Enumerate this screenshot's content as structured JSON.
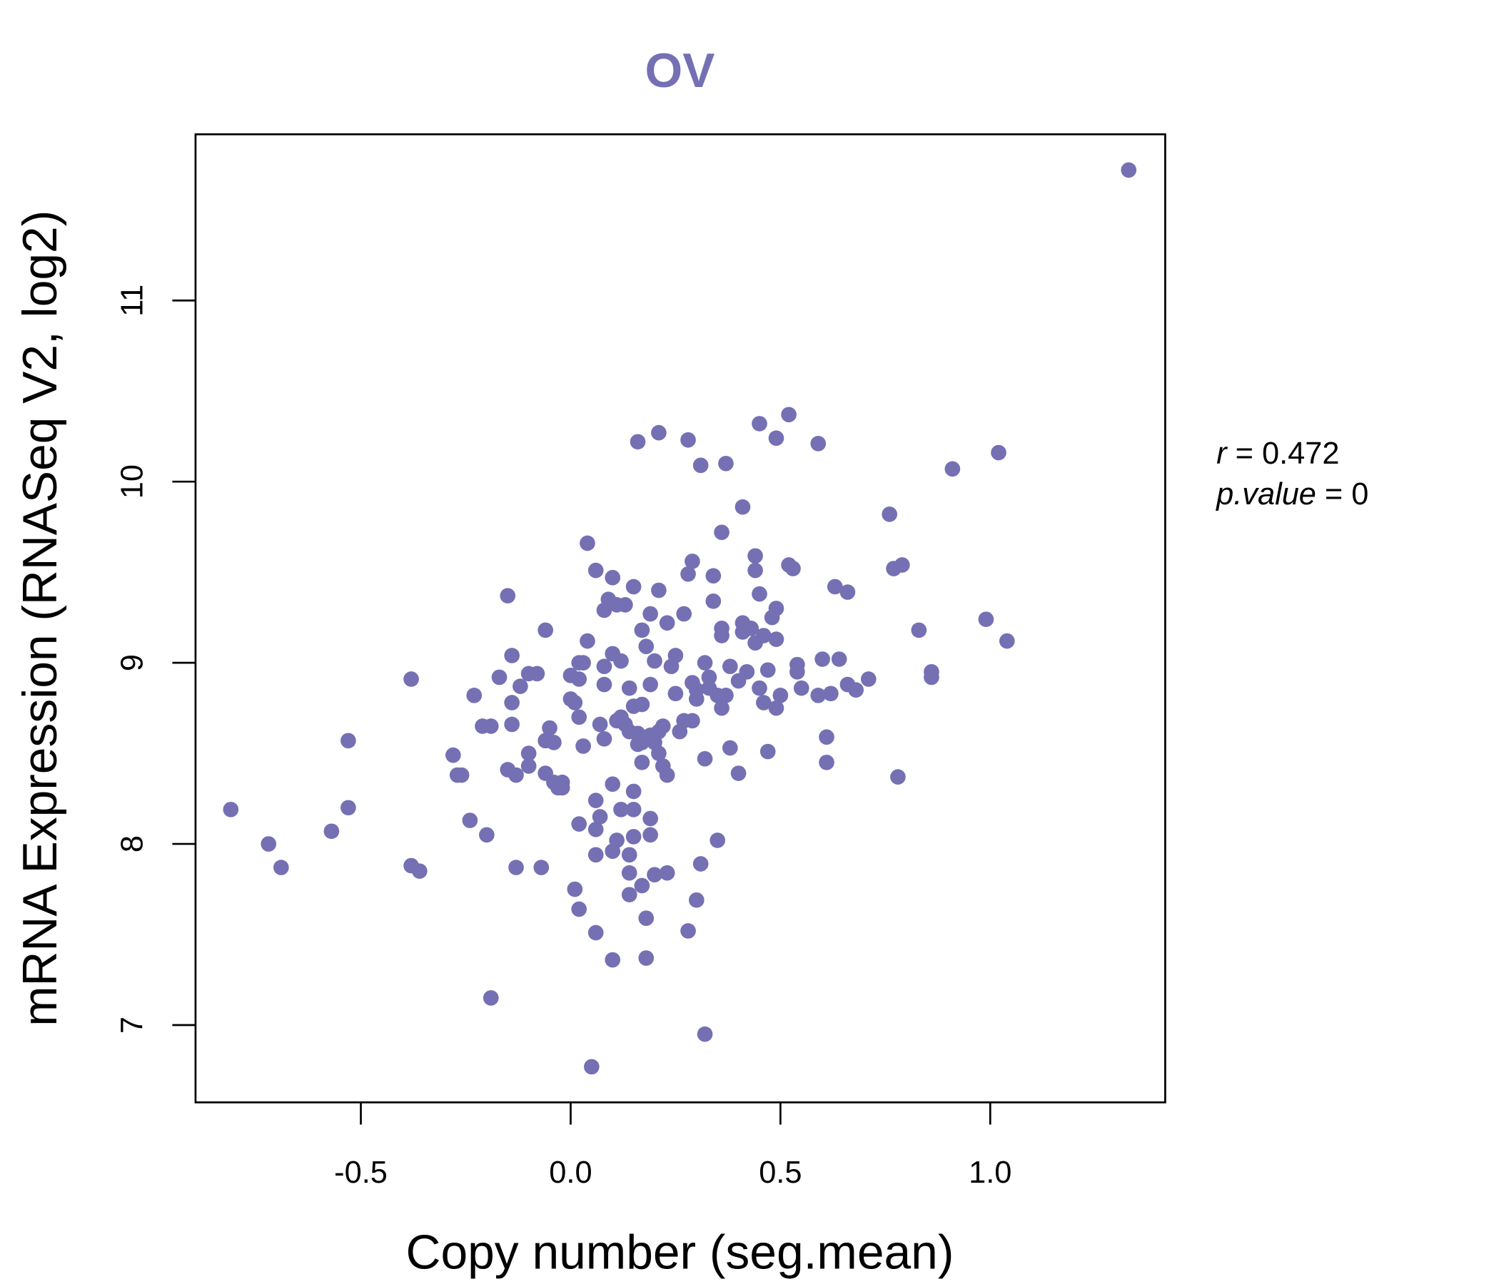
{
  "chart_data": {
    "type": "scatter",
    "title": "OV",
    "xlabel": "Copy number (seg.mean)",
    "ylabel": "mRNA Expression (RNASeq V2, log2)",
    "xlim": [
      -0.89,
      1.42
    ],
    "ylim": [
      6.58,
      11.93
    ],
    "xticks": [
      {
        "value": -0.5,
        "label": "-0.5"
      },
      {
        "value": 0.0,
        "label": "0.0"
      },
      {
        "value": 0.5,
        "label": "0.5"
      },
      {
        "value": 1.0,
        "label": "1.0"
      }
    ],
    "yticks": [
      {
        "value": 7,
        "label": "7"
      },
      {
        "value": 8,
        "label": "8"
      },
      {
        "value": 9,
        "label": "9"
      },
      {
        "value": 10,
        "label": "10"
      },
      {
        "value": 11,
        "label": "11"
      }
    ],
    "grid": false,
    "color": "#7570b3",
    "annotation": {
      "r_label": "r",
      "r_value": "0.472",
      "p_label": "p.value",
      "p_value": "0"
    },
    "points": [
      [
        1.33,
        11.72
      ],
      [
        -0.81,
        8.19
      ],
      [
        -0.72,
        8.0
      ],
      [
        -0.69,
        7.87
      ],
      [
        -0.57,
        8.07
      ],
      [
        -0.53,
        8.2
      ],
      [
        -0.53,
        8.57
      ],
      [
        -0.38,
        8.91
      ],
      [
        -0.38,
        7.88
      ],
      [
        -0.36,
        7.85
      ],
      [
        -0.28,
        8.49
      ],
      [
        -0.27,
        8.38
      ],
      [
        -0.26,
        8.38
      ],
      [
        -0.24,
        8.13
      ],
      [
        -0.23,
        8.82
      ],
      [
        -0.2,
        8.05
      ],
      [
        -0.21,
        8.65
      ],
      [
        -0.19,
        8.65
      ],
      [
        -0.19,
        7.15
      ],
      [
        -0.17,
        8.92
      ],
      [
        -0.15,
        9.37
      ],
      [
        -0.15,
        8.41
      ],
      [
        -0.14,
        9.04
      ],
      [
        -0.14,
        8.78
      ],
      [
        -0.14,
        8.66
      ],
      [
        -0.13,
        7.87
      ],
      [
        -0.13,
        8.38
      ],
      [
        -0.12,
        8.87
      ],
      [
        -0.1,
        8.5
      ],
      [
        -0.1,
        8.43
      ],
      [
        -0.1,
        8.94
      ],
      [
        -0.08,
        8.94
      ],
      [
        -0.07,
        7.87
      ],
      [
        -0.06,
        9.18
      ],
      [
        -0.06,
        8.57
      ],
      [
        -0.05,
        8.64
      ],
      [
        -0.04,
        8.56
      ],
      [
        -0.06,
        8.39
      ],
      [
        -0.04,
        8.34
      ],
      [
        -0.03,
        8.31
      ],
      [
        -0.02,
        8.34
      ],
      [
        -0.02,
        8.31
      ],
      [
        0.0,
        8.8
      ],
      [
        0.0,
        8.93
      ],
      [
        0.01,
        8.78
      ],
      [
        0.02,
        9.0
      ],
      [
        0.02,
        8.91
      ],
      [
        0.02,
        8.7
      ],
      [
        0.01,
        7.75
      ],
      [
        0.02,
        7.64
      ],
      [
        0.03,
        8.54
      ],
      [
        0.02,
        8.11
      ],
      [
        0.03,
        9.0
      ],
      [
        0.04,
        9.66
      ],
      [
        0.04,
        9.12
      ],
      [
        0.05,
        6.77
      ],
      [
        0.06,
        7.94
      ],
      [
        0.06,
        8.08
      ],
      [
        0.06,
        9.51
      ],
      [
        0.06,
        8.24
      ],
      [
        0.06,
        7.51
      ],
      [
        0.07,
        8.15
      ],
      [
        0.08,
        9.29
      ],
      [
        0.08,
        8.88
      ],
      [
        0.08,
        8.58
      ],
      [
        0.07,
        8.66
      ],
      [
        0.08,
        8.98
      ],
      [
        0.09,
        9.35
      ],
      [
        0.1,
        9.47
      ],
      [
        0.1,
        8.33
      ],
      [
        0.1,
        7.36
      ],
      [
        0.1,
        7.96
      ],
      [
        0.11,
        8.02
      ],
      [
        0.1,
        9.05
      ],
      [
        0.11,
        8.68
      ],
      [
        0.11,
        9.32
      ],
      [
        0.12,
        8.19
      ],
      [
        0.12,
        9.01
      ],
      [
        0.13,
        9.32
      ],
      [
        0.13,
        8.66
      ],
      [
        0.14,
        7.94
      ],
      [
        0.14,
        7.84
      ],
      [
        0.14,
        7.72
      ],
      [
        0.15,
        9.42
      ],
      [
        0.14,
        8.86
      ],
      [
        0.15,
        8.19
      ],
      [
        0.15,
        8.04
      ],
      [
        0.15,
        8.29
      ],
      [
        0.16,
        10.22
      ],
      [
        0.16,
        8.61
      ],
      [
        0.17,
        8.77
      ],
      [
        0.17,
        8.45
      ],
      [
        0.17,
        7.77
      ],
      [
        0.17,
        9.18
      ],
      [
        0.18,
        7.37
      ],
      [
        0.18,
        9.09
      ],
      [
        0.18,
        7.59
      ],
      [
        0.19,
        9.27
      ],
      [
        0.19,
        8.05
      ],
      [
        0.19,
        8.88
      ],
      [
        0.19,
        8.14
      ],
      [
        0.2,
        9.01
      ],
      [
        0.2,
        7.83
      ],
      [
        0.21,
        8.5
      ],
      [
        0.21,
        10.27
      ],
      [
        0.21,
        9.4
      ],
      [
        0.21,
        8.62
      ],
      [
        0.22,
        8.43
      ],
      [
        0.22,
        8.65
      ],
      [
        0.23,
        9.22
      ],
      [
        0.23,
        8.38
      ],
      [
        0.23,
        7.84
      ],
      [
        0.24,
        8.98
      ],
      [
        0.25,
        9.04
      ],
      [
        0.25,
        8.83
      ],
      [
        0.26,
        8.62
      ],
      [
        0.27,
        9.27
      ],
      [
        0.27,
        8.68
      ],
      [
        0.28,
        10.23
      ],
      [
        0.28,
        7.52
      ],
      [
        0.28,
        9.49
      ],
      [
        0.29,
        8.68
      ],
      [
        0.29,
        9.56
      ],
      [
        0.29,
        8.89
      ],
      [
        0.3,
        8.8
      ],
      [
        0.3,
        7.69
      ],
      [
        0.31,
        7.89
      ],
      [
        0.31,
        10.09
      ],
      [
        0.32,
        6.95
      ],
      [
        0.32,
        8.47
      ],
      [
        0.32,
        9.0
      ],
      [
        0.33,
        8.86
      ],
      [
        0.34,
        9.34
      ],
      [
        0.34,
        9.48
      ],
      [
        0.35,
        8.82
      ],
      [
        0.35,
        8.02
      ],
      [
        0.36,
        9.19
      ],
      [
        0.36,
        8.75
      ],
      [
        0.36,
        9.15
      ],
      [
        0.36,
        9.72
      ],
      [
        0.37,
        10.1
      ],
      [
        0.37,
        8.82
      ],
      [
        0.38,
        8.53
      ],
      [
        0.38,
        8.98
      ],
      [
        0.4,
        8.9
      ],
      [
        0.4,
        8.39
      ],
      [
        0.41,
        9.86
      ],
      [
        0.41,
        9.17
      ],
      [
        0.41,
        9.22
      ],
      [
        0.42,
        8.95
      ],
      [
        0.43,
        9.19
      ],
      [
        0.44,
        9.59
      ],
      [
        0.44,
        9.11
      ],
      [
        0.44,
        9.51
      ],
      [
        0.45,
        10.32
      ],
      [
        0.45,
        9.38
      ],
      [
        0.45,
        8.86
      ],
      [
        0.46,
        9.15
      ],
      [
        0.46,
        8.78
      ],
      [
        0.47,
        8.96
      ],
      [
        0.47,
        8.51
      ],
      [
        0.48,
        9.25
      ],
      [
        0.49,
        10.24
      ],
      [
        0.49,
        8.75
      ],
      [
        0.49,
        9.3
      ],
      [
        0.49,
        9.13
      ],
      [
        0.5,
        8.82
      ],
      [
        0.52,
        10.37
      ],
      [
        0.52,
        9.54
      ],
      [
        0.53,
        9.52
      ],
      [
        0.54,
        8.95
      ],
      [
        0.54,
        8.99
      ],
      [
        0.55,
        8.86
      ],
      [
        0.59,
        10.21
      ],
      [
        0.59,
        8.82
      ],
      [
        0.6,
        9.02
      ],
      [
        0.61,
        8.45
      ],
      [
        0.61,
        8.59
      ],
      [
        0.62,
        8.83
      ],
      [
        0.63,
        9.42
      ],
      [
        0.64,
        9.02
      ],
      [
        0.66,
        8.88
      ],
      [
        0.66,
        9.39
      ],
      [
        0.68,
        8.85
      ],
      [
        0.71,
        8.91
      ],
      [
        0.76,
        9.82
      ],
      [
        0.77,
        9.52
      ],
      [
        0.78,
        8.37
      ],
      [
        0.79,
        9.54
      ],
      [
        0.83,
        9.18
      ],
      [
        0.86,
        8.95
      ],
      [
        0.86,
        8.92
      ],
      [
        0.91,
        10.07
      ],
      [
        0.99,
        9.24
      ],
      [
        1.02,
        10.16
      ],
      [
        1.04,
        9.12
      ],
      [
        0.16,
        8.55
      ],
      [
        0.18,
        8.58
      ],
      [
        0.19,
        8.6
      ],
      [
        0.14,
        8.62
      ],
      [
        0.12,
        8.7
      ],
      [
        0.17,
        8.56
      ],
      [
        0.2,
        8.56
      ],
      [
        0.15,
        8.76
      ],
      [
        0.3,
        8.85
      ],
      [
        0.33,
        8.92
      ]
    ]
  }
}
